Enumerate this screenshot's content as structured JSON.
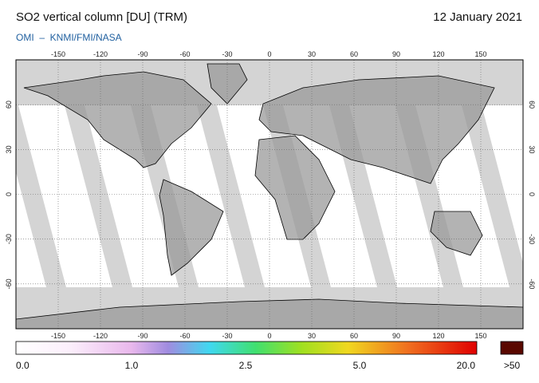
{
  "header": {
    "title": "SO2 vertical column [DU] (TRM)",
    "date": "12 January 2021",
    "source": "OMI  –  KNMI/FMI/NASA"
  },
  "map": {
    "lon_ticks": [
      -150,
      -120,
      -90,
      -60,
      -30,
      0,
      30,
      60,
      90,
      120,
      150
    ],
    "lat_ticks": [
      60,
      30,
      0,
      -30,
      -60
    ]
  },
  "colorbar": {
    "labels": [
      "0.0",
      "1.0",
      "2.5",
      "5.0",
      "20.0"
    ],
    "overflow": ">50"
  }
}
